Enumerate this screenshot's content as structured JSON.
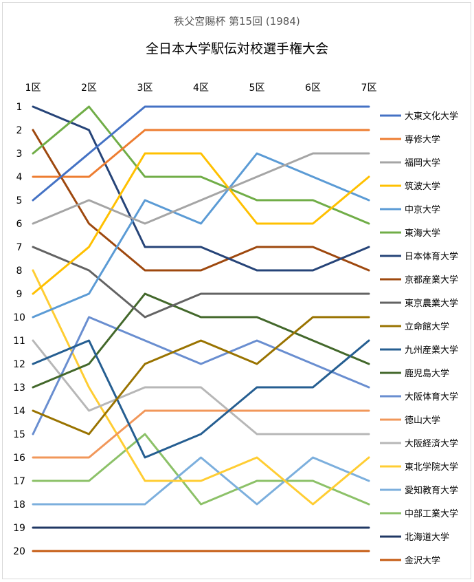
{
  "chart_data": {
    "type": "line",
    "title": "全日本大学駅伝対校選手権大会",
    "subtitle": "秩父宮賜杯 第15回 (1984)",
    "categories": [
      "1区",
      "2区",
      "3区",
      "4区",
      "5区",
      "6区",
      "7区"
    ],
    "y_ticks": [
      "1",
      "2",
      "3",
      "4",
      "5",
      "6",
      "7",
      "8",
      "9",
      "10",
      "11",
      "12",
      "13",
      "14",
      "15",
      "16",
      "17",
      "18",
      "19",
      "20"
    ],
    "ylim": [
      1,
      20
    ],
    "y_reversed": true,
    "x_axis_position": "top",
    "grid": false,
    "legend_position": "right",
    "series": [
      {
        "name": "大東文化大学",
        "color": "#4472C4",
        "values": [
          5,
          3,
          1,
          1,
          1,
          1,
          1
        ]
      },
      {
        "name": "専修大学",
        "color": "#ED7D31",
        "values": [
          4,
          4,
          2,
          2,
          2,
          2,
          2
        ]
      },
      {
        "name": "福岡大学",
        "color": "#A5A5A5",
        "values": [
          6,
          5,
          6,
          5,
          4,
          3,
          3
        ]
      },
      {
        "name": "筑波大学",
        "color": "#FFC000",
        "values": [
          9,
          7,
          3,
          3,
          6,
          6,
          4
        ]
      },
      {
        "name": "中京大学",
        "color": "#5B9BD5",
        "values": [
          10,
          9,
          5,
          6,
          3,
          4,
          5
        ]
      },
      {
        "name": "東海大学",
        "color": "#70AD47",
        "values": [
          3,
          1,
          4,
          4,
          5,
          5,
          6
        ]
      },
      {
        "name": "日本体育大学",
        "color": "#264478",
        "values": [
          1,
          2,
          7,
          7,
          8,
          8,
          7
        ]
      },
      {
        "name": "京都産業大学",
        "color": "#9E480E",
        "values": [
          2,
          6,
          8,
          8,
          7,
          7,
          8
        ]
      },
      {
        "name": "東京農業大学",
        "color": "#636363",
        "values": [
          7,
          8,
          10,
          9,
          9,
          9,
          9
        ]
      },
      {
        "name": "立命館大学",
        "color": "#997300",
        "values": [
          14,
          15,
          12,
          11,
          12,
          10,
          10
        ]
      },
      {
        "name": "九州産業大学",
        "color": "#255E91",
        "values": [
          12,
          11,
          16,
          15,
          13,
          13,
          11
        ]
      },
      {
        "name": "鹿児島大学",
        "color": "#43682B",
        "values": [
          13,
          12,
          9,
          10,
          10,
          11,
          12
        ]
      },
      {
        "name": "大阪体育大学",
        "color": "#698ED0",
        "values": [
          15,
          10,
          11,
          12,
          11,
          12,
          13
        ]
      },
      {
        "name": "徳山大学",
        "color": "#F1975A",
        "values": [
          16,
          16,
          14,
          14,
          14,
          14,
          14
        ]
      },
      {
        "name": "大阪経済大学",
        "color": "#B7B7B7",
        "values": [
          11,
          14,
          13,
          13,
          15,
          15,
          15
        ]
      },
      {
        "name": "東北学院大学",
        "color": "#FFCD33",
        "values": [
          8,
          13,
          17,
          17,
          16,
          18,
          16
        ]
      },
      {
        "name": "愛知教育大学",
        "color": "#7CAFDD",
        "values": [
          18,
          18,
          18,
          16,
          18,
          16,
          17
        ]
      },
      {
        "name": "中部工業大学",
        "color": "#8CC168",
        "values": [
          17,
          17,
          15,
          18,
          17,
          17,
          18
        ]
      },
      {
        "name": "北海道大学",
        "color": "#203864",
        "values": [
          19,
          19,
          19,
          19,
          19,
          19,
          19
        ]
      },
      {
        "name": "金沢大学",
        "color": "#C55A11",
        "values": [
          20,
          20,
          20,
          20,
          20,
          20,
          20
        ]
      }
    ]
  }
}
